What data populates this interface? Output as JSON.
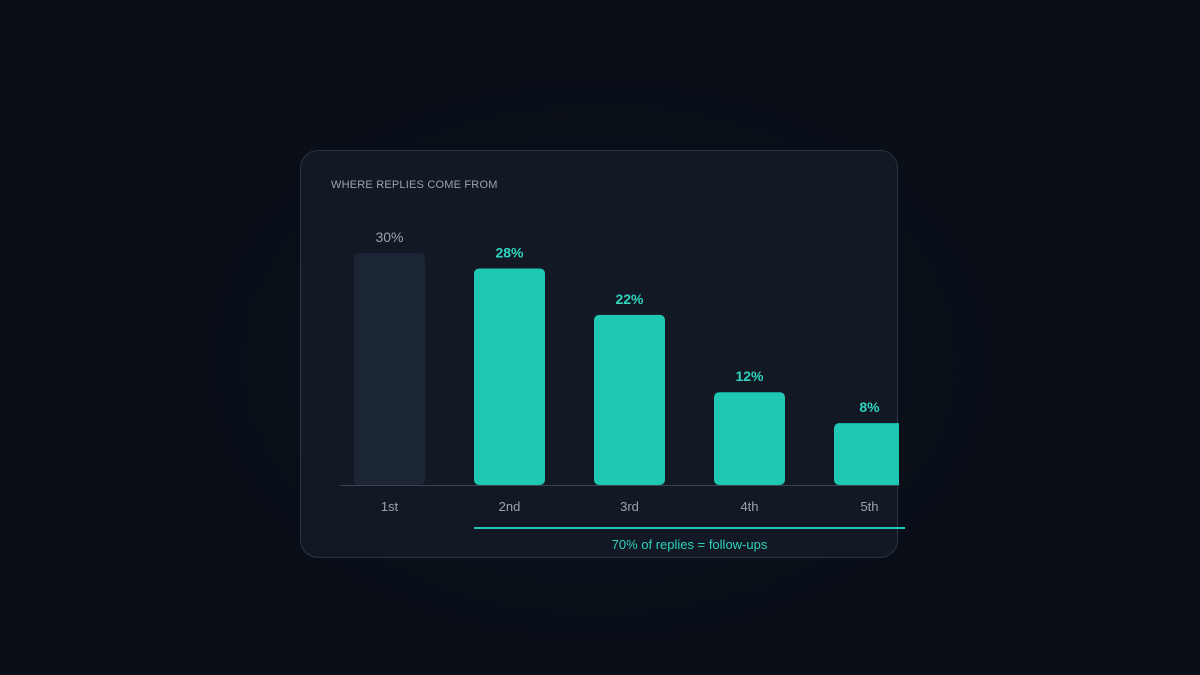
{
  "card": {
    "title": "WHERE REPLIES COME FROM",
    "annotation": "70% of replies = follow-ups"
  },
  "colors": {
    "accent": "#1ec8b3",
    "accent_text": "#2fd3be",
    "muted_bar": "#1c2536",
    "muted_text": "#9aa3b0",
    "baseline": "#3a4350"
  },
  "chart_data": {
    "type": "bar",
    "title": "WHERE REPLIES COME FROM",
    "categories": [
      "1st",
      "2nd",
      "3rd",
      "4th",
      "5th"
    ],
    "values": [
      30,
      28,
      22,
      12,
      8
    ],
    "value_labels": [
      "30%",
      "28%",
      "22%",
      "12%",
      "8%"
    ],
    "highlighted": [
      false,
      true,
      true,
      true,
      true
    ],
    "ylim": [
      0,
      30
    ],
    "grid": false,
    "legend": "none",
    "annotation": "70% of replies = follow-ups"
  }
}
